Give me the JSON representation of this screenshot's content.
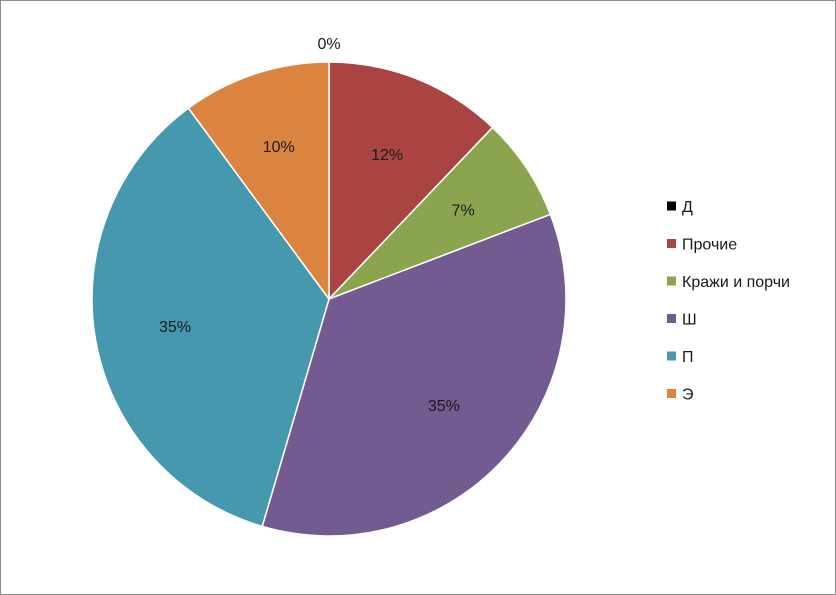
{
  "chart_data": {
    "type": "pie",
    "categories": [
      "Д",
      "Прочие",
      "Кражи и порчи",
      "Ш",
      "П",
      "Э"
    ],
    "values": [
      0,
      12,
      7,
      35,
      35,
      10
    ],
    "data_labels": [
      "0%",
      "12%",
      "7%",
      "35%",
      "35%",
      "10%"
    ],
    "colors": [
      "#000000",
      "#a94442",
      "#8ba54f",
      "#735a91",
      "#4598ae",
      "#db8440"
    ],
    "legend_position": "right"
  }
}
